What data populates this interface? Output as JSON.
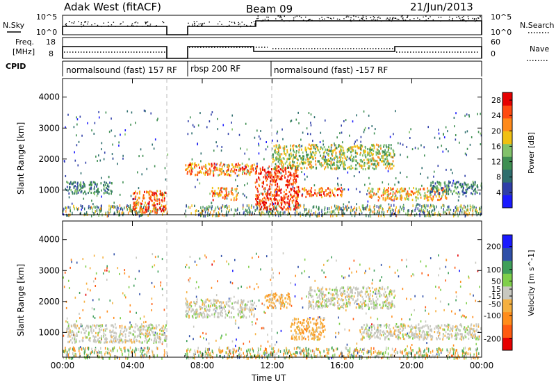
{
  "header": {
    "left": "Adak West (fitACF)",
    "center": "Beam 09",
    "right": "21/Jun/2013"
  },
  "strip_labels": {
    "nsky": "N.Sky",
    "nsearch": "N.Search",
    "freq": "Freq.",
    "freq_unit": "[MHz]",
    "nave": "Nave",
    "cpid": "CPID",
    "noise_ticks_left": [
      "10^5",
      "10^0"
    ],
    "noise_ticks_right": [
      "10^5",
      "10^0"
    ],
    "freq_ticks": [
      "18",
      "8"
    ],
    "nave_ticks": [
      "60",
      "0"
    ]
  },
  "cpid_segments": [
    {
      "label": "normalsound (fast) 157 RF",
      "start": 0,
      "end": 6
    },
    {
      "label": "rbsp 200 RF",
      "start": 7,
      "end": 11
    },
    {
      "label": "normalsound (fast) -157 RF",
      "start": 11,
      "end": 24
    }
  ],
  "colors": {
    "power": [
      "#1a1aff",
      "#2f3fa8",
      "#2e6e6e",
      "#3f8f52",
      "#82c26a",
      "#f0c012",
      "#ff8a1a",
      "#ff4a10",
      "#e60000"
    ],
    "velocity": [
      "#e60000",
      "#ff5a10",
      "#ff8c1a",
      "#f5b040",
      "#c8c8c0",
      "#7fcf4a",
      "#3f9f5a",
      "#2f4fa8",
      "#1a1aff"
    ]
  },
  "chart_data": [
    {
      "type": "heatmap",
      "title": "Power",
      "xlabel": "Time UT",
      "ylabel": "Slant Range [km]",
      "x_ticks": [
        "00:00",
        "04:00",
        "08:00",
        "12:00",
        "16:00",
        "20:00",
        "00:00"
      ],
      "xlim": [
        0,
        24
      ],
      "y_ticks": [
        1000,
        2000,
        3000,
        4000
      ],
      "ylim": [
        200,
        4600
      ],
      "colorbar": {
        "label": "Power [dB]",
        "ticks": [
          4,
          8,
          12,
          16,
          20,
          24,
          28
        ],
        "range": [
          0,
          30
        ]
      },
      "data_gap_hours": [
        [
          6.0,
          7.0
        ]
      ],
      "features": [
        {
          "time": [
            0.2,
            2.8
          ],
          "range_km": [
            900,
            1300
          ],
          "level": 10
        },
        {
          "time": [
            4.0,
            5.9
          ],
          "range_km": [
            300,
            1000
          ],
          "level": 24
        },
        {
          "time": [
            7.0,
            11.0
          ],
          "range_km": [
            1500,
            1900
          ],
          "level": 22
        },
        {
          "time": [
            8.5,
            10.0
          ],
          "range_km": [
            700,
            1100
          ],
          "level": 22
        },
        {
          "time": [
            11.0,
            13.5
          ],
          "range_km": [
            400,
            1800
          ],
          "level": 26
        },
        {
          "time": [
            12.0,
            19.0
          ],
          "range_km": [
            1700,
            2500
          ],
          "level": 16
        },
        {
          "time": [
            13.0,
            16.0
          ],
          "range_km": [
            800,
            1100
          ],
          "level": 24
        },
        {
          "time": [
            17.5,
            22.0
          ],
          "range_km": [
            700,
            1100
          ],
          "level": 20
        },
        {
          "time": [
            21.0,
            24.0
          ],
          "range_km": [
            900,
            1300
          ],
          "level": 10
        }
      ]
    },
    {
      "type": "heatmap",
      "title": "Velocity",
      "xlabel": "Time UT",
      "ylabel": "Slant Range [km]",
      "x_ticks": [
        "00:00",
        "04:00",
        "08:00",
        "12:00",
        "16:00",
        "20:00",
        "00:00"
      ],
      "xlim": [
        0,
        24
      ],
      "y_ticks": [
        1000,
        2000,
        3000,
        4000
      ],
      "ylim": [
        200,
        4600
      ],
      "colorbar": {
        "label": "Velocity [m s^-1]",
        "ticks": [
          -200,
          -100,
          -50,
          -15,
          15,
          50,
          100,
          200
        ],
        "range": [
          -250,
          250
        ]
      },
      "data_gap_hours": [
        [
          6.0,
          7.0
        ]
      ],
      "features": [
        {
          "time": [
            0.2,
            5.9
          ],
          "range_km": [
            700,
            1300
          ],
          "level": 0
        },
        {
          "time": [
            7.0,
            11.0
          ],
          "range_km": [
            1500,
            2100
          ],
          "level": 0
        },
        {
          "time": [
            11.5,
            13.0
          ],
          "range_km": [
            1800,
            2300
          ],
          "level": -60
        },
        {
          "time": [
            13.0,
            15.0
          ],
          "range_km": [
            800,
            1500
          ],
          "level": -60
        },
        {
          "time": [
            14.0,
            19.0
          ],
          "range_km": [
            1800,
            2500
          ],
          "level": 0
        },
        {
          "time": [
            17.0,
            24.0
          ],
          "range_km": [
            800,
            1300
          ],
          "level": 0
        }
      ]
    }
  ]
}
